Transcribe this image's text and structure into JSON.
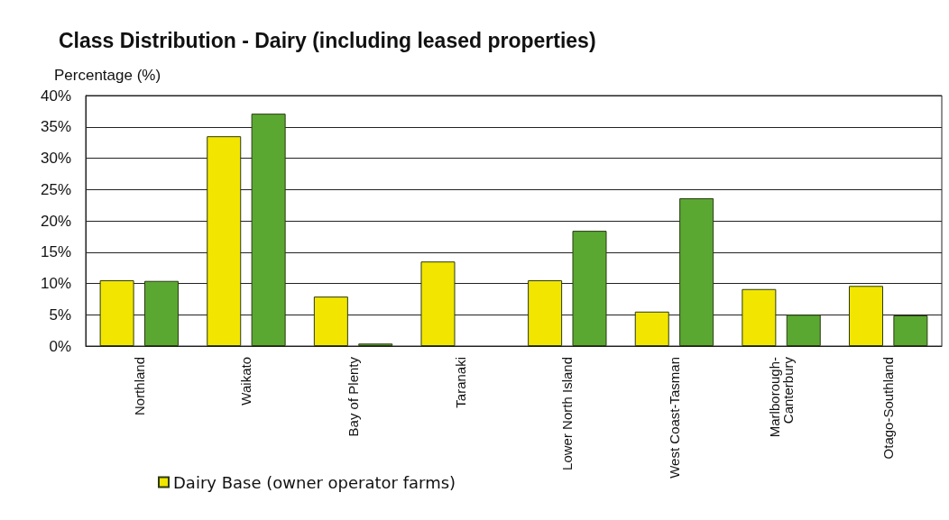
{
  "chart_data": {
    "type": "bar",
    "title": "Class Distribution - Dairy (including leased properties)",
    "ylabel": "Percentage (%)",
    "categories": [
      "Northland",
      "Waikato",
      "Bay of Plenty",
      "Taranaki",
      "Lower North Island",
      "West Coast-Tasman",
      "Marlborough-Canterbury",
      "Otago-Southland"
    ],
    "series": [
      {
        "name": "Dairy Base (owner operator farms)",
        "color": "#f2e600",
        "values": [
          10.5,
          33.5,
          7.9,
          13.5,
          10.5,
          5.5,
          9.1,
          9.6
        ]
      },
      {
        "color": "#5aa832",
        "values": [
          10.4,
          37.1,
          0.4,
          null,
          18.4,
          23.6,
          5.0,
          4.9
        ]
      }
    ],
    "ylim": [
      0,
      40
    ],
    "yticks": [
      {
        "value": 0,
        "label": "0%"
      },
      {
        "value": 5,
        "label": "5%"
      },
      {
        "value": 10,
        "label": "10%"
      },
      {
        "value": 15,
        "label": "15%"
      },
      {
        "value": 20,
        "label": "20%"
      },
      {
        "value": 25,
        "label": "25%"
      },
      {
        "value": 30,
        "label": "30%"
      },
      {
        "value": 35,
        "label": "35%"
      },
      {
        "value": 40,
        "label": "40%"
      }
    ],
    "grid": "y",
    "legend": "bottom left"
  }
}
